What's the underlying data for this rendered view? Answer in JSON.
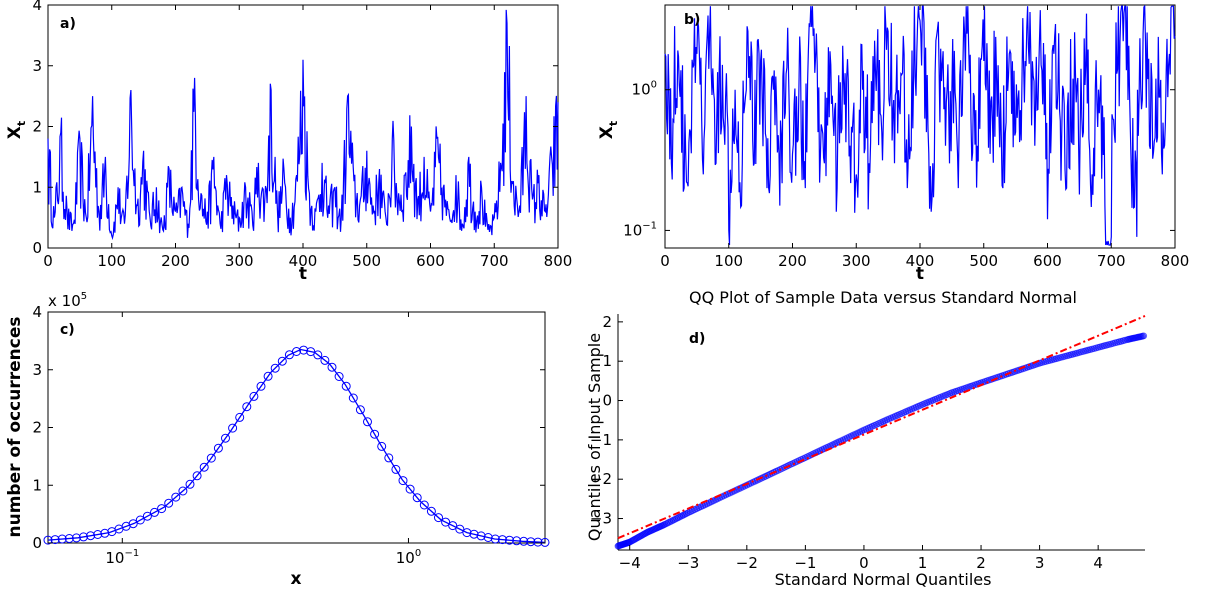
{
  "colors": {
    "series": "#0000ff",
    "reference_line": "#ff0000",
    "axes": "#000000"
  },
  "chart_data": [
    {
      "panel_label": "a)",
      "type": "line",
      "title": "",
      "xlabel": "t",
      "ylabel": "X",
      "ylabel_subscript": "t",
      "xlim": [
        0,
        800
      ],
      "ylim": [
        0,
        4
      ],
      "xscale": "linear",
      "yscale": "linear",
      "xticks": [
        0,
        100,
        200,
        300,
        400,
        500,
        600,
        700,
        800
      ],
      "yticks": [
        0,
        1,
        2,
        3,
        4
      ],
      "grid": false,
      "series": [
        {
          "x": [
            0,
            10,
            20,
            30,
            40,
            50,
            60,
            70,
            80,
            90,
            100,
            110,
            120,
            130,
            140,
            150,
            160,
            170,
            180,
            190,
            200,
            210,
            220,
            230,
            240,
            250,
            260,
            270,
            280,
            290,
            300,
            310,
            320,
            330,
            340,
            350,
            360,
            370,
            380,
            390,
            400,
            410,
            420,
            430,
            440,
            450,
            460,
            470,
            480,
            490,
            500,
            510,
            520,
            530,
            540,
            550,
            560,
            570,
            580,
            590,
            600,
            610,
            620,
            630,
            640,
            650,
            660,
            670,
            680,
            690,
            700,
            710,
            720,
            730,
            740,
            750,
            760,
            770,
            780,
            790,
            800
          ],
          "y": [
            1.8,
            0.5,
            1.9,
            0.6,
            0.4,
            1.8,
            0.5,
            2.5,
            0.6,
            1.5,
            0.2,
            1.0,
            0.4,
            2.6,
            0.7,
            1.6,
            0.5,
            1.0,
            0.3,
            1.3,
            0.6,
            1.0,
            0.4,
            2.8,
            0.9,
            0.6,
            1.5,
            0.4,
            1.2,
            0.7,
            0.5,
            1.0,
            0.6,
            1.4,
            0.8,
            2.6,
            0.6,
            1.3,
            0.5,
            1.2,
            3.1,
            0.9,
            0.6,
            1.4,
            0.7,
            1.0,
            0.5,
            2.5,
            1.1,
            0.8,
            1.6,
            0.7,
            1.3,
            0.5,
            1.8,
            0.9,
            1.2,
            2.0,
            0.8,
            1.5,
            0.6,
            1.8,
            1.0,
            0.5,
            1.2,
            0.4,
            1.5,
            0.6,
            1.0,
            0.3,
            0.5,
            1.4,
            3.7,
            1.1,
            0.7,
            2.5,
            0.8,
            1.2,
            0.6,
            1.5,
            2.4
          ]
        }
      ]
    },
    {
      "panel_label": "b)",
      "type": "line",
      "title": "",
      "xlabel": "t",
      "ylabel": "X",
      "ylabel_subscript": "t",
      "xlim": [
        0,
        800
      ],
      "ylim": [
        0.075,
        4
      ],
      "xscale": "linear",
      "yscale": "log",
      "xticks": [
        0,
        100,
        200,
        300,
        400,
        500,
        600,
        700,
        800
      ],
      "ytick_labels": [
        {
          "value": 1,
          "base": "10",
          "exp": "0"
        },
        {
          "value": 0.1,
          "base": "10",
          "exp": "−1"
        }
      ],
      "grid": false,
      "series": [
        {
          "x": [
            0,
            10,
            20,
            30,
            40,
            50,
            60,
            70,
            80,
            90,
            100,
            110,
            120,
            130,
            140,
            150,
            160,
            170,
            180,
            190,
            200,
            210,
            220,
            230,
            240,
            250,
            260,
            270,
            280,
            290,
            300,
            310,
            320,
            330,
            340,
            350,
            360,
            370,
            380,
            390,
            400,
            410,
            420,
            430,
            440,
            450,
            460,
            470,
            480,
            490,
            500,
            510,
            520,
            530,
            540,
            550,
            560,
            570,
            580,
            590,
            600,
            610,
            620,
            630,
            640,
            650,
            660,
            670,
            680,
            690,
            700,
            710,
            720,
            730,
            740,
            750,
            760,
            770,
            780,
            790,
            800
          ],
          "y": [
            1.8,
            0.3,
            1.9,
            0.2,
            0.5,
            1.8,
            0.25,
            2.5,
            0.3,
            1.5,
            0.1,
            1.0,
            0.15,
            2.6,
            0.3,
            1.6,
            0.2,
            1.0,
            0.15,
            1.3,
            0.35,
            1.0,
            0.2,
            2.8,
            0.5,
            0.3,
            1.5,
            0.2,
            1.2,
            0.4,
            0.25,
            1.0,
            0.3,
            1.4,
            0.5,
            2.6,
            0.3,
            1.3,
            0.2,
            1.2,
            3.1,
            0.5,
            0.3,
            1.4,
            0.4,
            1.0,
            0.2,
            2.5,
            0.6,
            0.4,
            1.6,
            0.35,
            1.3,
            0.2,
            1.8,
            0.5,
            1.2,
            2.0,
            0.4,
            1.5,
            0.12,
            1.8,
            0.6,
            0.2,
            1.2,
            0.18,
            1.5,
            0.25,
            1.0,
            0.15,
            0.09,
            1.4,
            3.5,
            0.5,
            0.09,
            2.5,
            0.4,
            1.2,
            0.25,
            1.5,
            2.4
          ]
        }
      ]
    },
    {
      "panel_label": "c)",
      "type": "line",
      "title": "",
      "xlabel": "x",
      "ylabel": "number of occurrences",
      "y_multiplier_label": {
        "base": "x 10",
        "exp": "5"
      },
      "xlim": [
        0.055,
        3.0
      ],
      "ylim": [
        0,
        4
      ],
      "xscale": "log",
      "yscale": "linear",
      "xtick_labels": [
        {
          "value": 0.1,
          "base": "10",
          "exp": "−1"
        },
        {
          "value": 1,
          "base": "10",
          "exp": "0"
        }
      ],
      "yticks": [
        0,
        1,
        2,
        3,
        4
      ],
      "grid": false,
      "markers": "circle",
      "series": [
        {
          "x": [
            0.055,
            0.07,
            0.09,
            0.11,
            0.14,
            0.17,
            0.2,
            0.24,
            0.28,
            0.33,
            0.38,
            0.42,
            0.47,
            0.53,
            0.6,
            0.7,
            0.8,
            0.95,
            1.1,
            1.3,
            1.6,
            2.0,
            2.5,
            3.0
          ],
          "y": [
            0.05,
            0.09,
            0.18,
            0.34,
            0.62,
            0.98,
            1.4,
            1.95,
            2.45,
            2.95,
            3.25,
            3.35,
            3.3,
            3.1,
            2.75,
            2.2,
            1.7,
            1.1,
            0.72,
            0.4,
            0.18,
            0.07,
            0.03,
            0.01
          ]
        }
      ]
    },
    {
      "panel_label": "d)",
      "type": "scatter",
      "title": "QQ Plot of Sample Data versus Standard Normal",
      "xlabel": "Standard Normal Quantiles",
      "ylabel": "Quantiles of Input Sample",
      "xlim": [
        -4.2,
        4.8
      ],
      "ylim": [
        -3.8,
        2.2
      ],
      "xscale": "linear",
      "yscale": "linear",
      "xticks": [
        -4,
        -3,
        -2,
        -1,
        0,
        1,
        2,
        3,
        4
      ],
      "yticks": [
        -3,
        -2,
        -1,
        0,
        1,
        2
      ],
      "grid": false,
      "series": [
        {
          "x": [
            -4.2,
            -4.0,
            -3.7,
            -3.4,
            -3.0,
            -2.5,
            -2.0,
            -1.5,
            -1.0,
            -0.5,
            0,
            0.5,
            1.0,
            1.5,
            2.0,
            2.5,
            3.0,
            3.5,
            4.0,
            4.5,
            4.8
          ],
          "y": [
            -3.7,
            -3.6,
            -3.35,
            -3.15,
            -2.85,
            -2.5,
            -2.15,
            -1.8,
            -1.45,
            -1.1,
            -0.75,
            -0.42,
            -0.1,
            0.2,
            0.45,
            0.7,
            0.95,
            1.15,
            1.35,
            1.55,
            1.65
          ]
        }
      ],
      "reference_line": {
        "x": [
          -4.2,
          4.8
        ],
        "y": [
          -3.5,
          2.15
        ],
        "style": "dash-dot"
      }
    }
  ]
}
